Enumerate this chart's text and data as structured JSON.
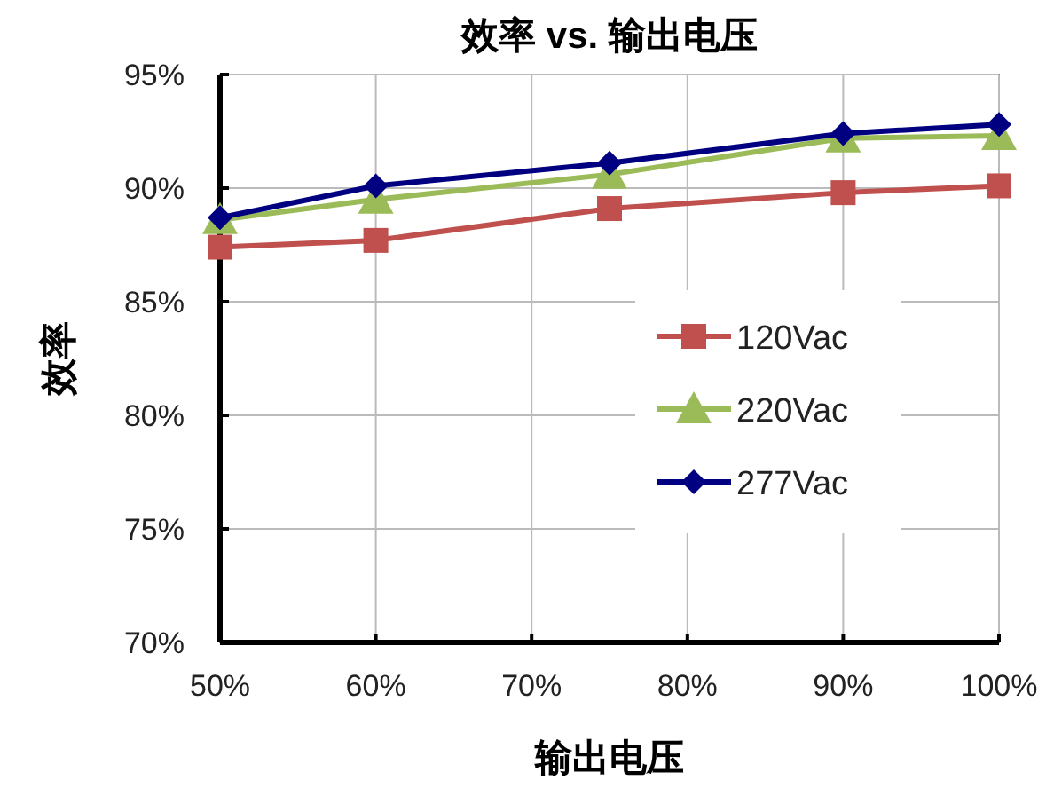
{
  "chart_data": {
    "type": "line",
    "title": "效率 vs. 输出电压",
    "xlabel": "输出电压",
    "ylabel": "效率",
    "x": [
      50,
      60,
      75,
      90,
      100
    ],
    "xlim": [
      50,
      100
    ],
    "xticks": [
      {
        "value": 50,
        "label": "50%"
      },
      {
        "value": 60,
        "label": "60%"
      },
      {
        "value": 70,
        "label": "70%"
      },
      {
        "value": 80,
        "label": "80%"
      },
      {
        "value": 90,
        "label": "90%"
      },
      {
        "value": 100,
        "label": "100%"
      }
    ],
    "ylim": [
      70,
      95
    ],
    "yticks": [
      {
        "value": 70,
        "label": "70%"
      },
      {
        "value": 75,
        "label": "75%"
      },
      {
        "value": 80,
        "label": "80%"
      },
      {
        "value": 85,
        "label": "85%"
      },
      {
        "value": 90,
        "label": "90%"
      },
      {
        "value": 95,
        "label": "95%"
      }
    ],
    "grid": true,
    "legend": "right",
    "line_style": "solid",
    "series": [
      {
        "name": "120Vac",
        "color": "#c0504d",
        "marker": "square",
        "values": [
          87.4,
          87.7,
          89.1,
          89.8,
          90.1
        ]
      },
      {
        "name": "220Vac",
        "color": "#9bbb59",
        "marker": "triangle",
        "values": [
          88.6,
          89.5,
          90.6,
          92.2,
          92.3
        ]
      },
      {
        "name": "277Vac",
        "color": "#000080",
        "marker": "diamond",
        "values": [
          88.7,
          90.1,
          91.1,
          92.4,
          92.8
        ]
      }
    ]
  }
}
